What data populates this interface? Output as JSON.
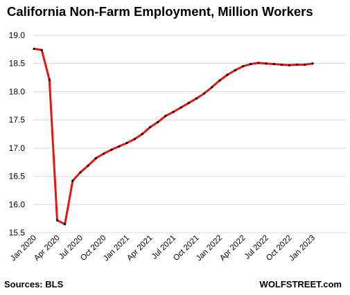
{
  "chart_data": {
    "type": "line",
    "title": "California Non-Farm Employment, Million Workers",
    "xlabel": "",
    "ylabel": "",
    "ylim": [
      15.5,
      19.0
    ],
    "yticks": [
      "15.5",
      "16.0",
      "16.5",
      "17.0",
      "17.5",
      "18.0",
      "18.5",
      "19.0"
    ],
    "xtick_labels": [
      "Jan 2020",
      "Apr 2020",
      "Jul 2020",
      "Oct 2020",
      "Jan 2021",
      "Apr 2021",
      "Jul 2021",
      "Oct 2021",
      "Jan 2022",
      "Apr 2022",
      "Jul 2022",
      "Oct 2022",
      "Jan 2023"
    ],
    "xtick_index": [
      0,
      3,
      6,
      9,
      12,
      15,
      18,
      21,
      24,
      27,
      30,
      33,
      36
    ],
    "grid": "horizontal",
    "line_color": "#e8140f",
    "marker_color": "#000000",
    "x": [
      "Jan 2020",
      "Feb 2020",
      "Mar 2020",
      "Apr 2020",
      "May 2020",
      "Jun 2020",
      "Jul 2020",
      "Aug 2020",
      "Sep 2020",
      "Oct 2020",
      "Nov 2020",
      "Dec 2020",
      "Jan 2021",
      "Feb 2021",
      "Mar 2021",
      "Apr 2021",
      "May 2021",
      "Jun 2021",
      "Jul 2021",
      "Aug 2021",
      "Sep 2021",
      "Oct 2021",
      "Nov 2021",
      "Dec 2021",
      "Jan 2022",
      "Feb 2022",
      "Mar 2022",
      "Apr 2022",
      "May 2022",
      "Jun 2022",
      "Jul 2022",
      "Aug 2022",
      "Sep 2022",
      "Oct 2022",
      "Nov 2022",
      "Dec 2022",
      "Jan 2023"
    ],
    "values": [
      18.76,
      18.74,
      18.21,
      15.72,
      15.65,
      16.42,
      16.57,
      16.69,
      16.82,
      16.9,
      16.97,
      17.03,
      17.09,
      17.16,
      17.25,
      17.37,
      17.46,
      17.57,
      17.64,
      17.72,
      17.8,
      17.88,
      17.97,
      18.08,
      18.2,
      18.3,
      18.38,
      18.45,
      18.49,
      18.51,
      18.5,
      18.49,
      18.48,
      18.47,
      18.48,
      18.48,
      18.5
    ]
  },
  "footer": {
    "source": "Sources: BLS",
    "brand": "WOLFSTREET.com"
  }
}
